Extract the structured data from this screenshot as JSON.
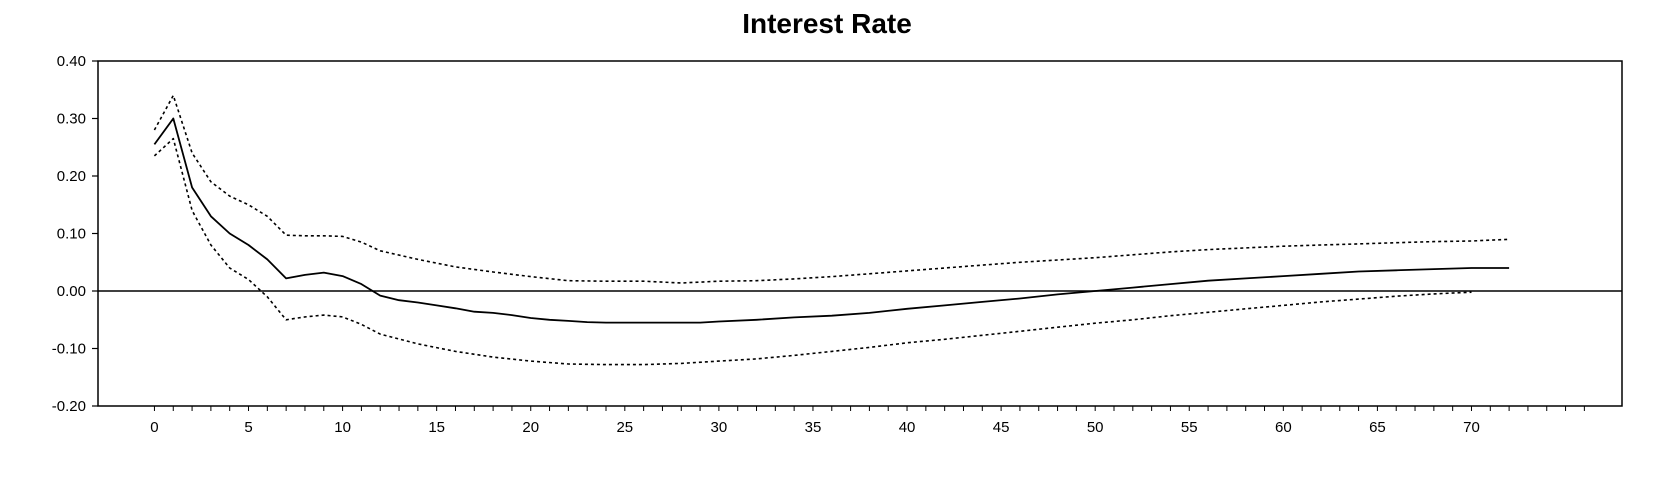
{
  "chart_data": {
    "type": "line",
    "title": "Interest Rate",
    "xlabel": "",
    "ylabel": "",
    "xlim": [
      -3,
      78
    ],
    "ylim": [
      -0.2,
      0.4
    ],
    "x_ticks": [
      0,
      5,
      10,
      15,
      20,
      25,
      30,
      35,
      40,
      45,
      50,
      55,
      60,
      65,
      70
    ],
    "y_ticks": [
      0.4,
      0.3,
      0.2,
      0.1,
      0.0,
      -0.1,
      -0.2
    ],
    "y_tick_labels": [
      "0.40",
      "0.30",
      "0.20",
      "0.10",
      "0.00",
      "-0.10",
      "-0.20"
    ],
    "zero_line": true,
    "grid": false,
    "legend": "none",
    "colors": {
      "line": "#000000",
      "band": "#000000"
    },
    "series": [
      {
        "style": "solid",
        "x": [
          0,
          1,
          2,
          3,
          4,
          5,
          6,
          7,
          8,
          9,
          10,
          11,
          12,
          13,
          14,
          15,
          16,
          17,
          18,
          19,
          20,
          21,
          22,
          23,
          24,
          25,
          26,
          27,
          28,
          29,
          30,
          32,
          34,
          36,
          38,
          40,
          42,
          44,
          46,
          48,
          50,
          52,
          54,
          56,
          58,
          60,
          62,
          64,
          66,
          68,
          70,
          72
        ],
        "y": [
          0.255,
          0.3,
          0.18,
          0.13,
          0.1,
          0.08,
          0.055,
          0.022,
          0.028,
          0.032,
          0.026,
          0.012,
          -0.008,
          -0.016,
          -0.02,
          -0.025,
          -0.03,
          -0.036,
          -0.038,
          -0.042,
          -0.047,
          -0.05,
          -0.052,
          -0.054,
          -0.055,
          -0.055,
          -0.055,
          -0.055,
          -0.055,
          -0.055,
          -0.053,
          -0.05,
          -0.046,
          -0.043,
          -0.038,
          -0.031,
          -0.025,
          -0.019,
          -0.013,
          -0.006,
          0.0,
          0.006,
          0.012,
          0.018,
          0.022,
          0.026,
          0.03,
          0.034,
          0.036,
          0.038,
          0.04,
          0.04
        ]
      },
      {
        "style": "dotted",
        "x": [
          0,
          1,
          2,
          3,
          4,
          5,
          6,
          7,
          8,
          9,
          10,
          11,
          12,
          14,
          16,
          18,
          20,
          22,
          24,
          26,
          28,
          30,
          32,
          34,
          36,
          38,
          40,
          42,
          44,
          46,
          48,
          50,
          52,
          54,
          56,
          58,
          60,
          62,
          64,
          66,
          68,
          70,
          72
        ],
        "y": [
          0.28,
          0.34,
          0.24,
          0.19,
          0.165,
          0.15,
          0.13,
          0.097,
          0.096,
          0.096,
          0.095,
          0.085,
          0.07,
          0.055,
          0.042,
          0.033,
          0.025,
          0.018,
          0.017,
          0.017,
          0.014,
          0.017,
          0.018,
          0.021,
          0.025,
          0.03,
          0.035,
          0.04,
          0.045,
          0.05,
          0.054,
          0.058,
          0.063,
          0.068,
          0.072,
          0.075,
          0.078,
          0.08,
          0.082,
          0.084,
          0.086,
          0.087,
          0.09
        ]
      },
      {
        "style": "dotted",
        "x": [
          0,
          1,
          2,
          3,
          4,
          5,
          6,
          7,
          8,
          9,
          10,
          11,
          12,
          14,
          16,
          18,
          20,
          22,
          24,
          26,
          28,
          30,
          32,
          34,
          36,
          38,
          40,
          42,
          44,
          46,
          48,
          50,
          52,
          54,
          56,
          58,
          60,
          62,
          64,
          66,
          68,
          70
        ],
        "y": [
          0.235,
          0.265,
          0.14,
          0.08,
          0.04,
          0.02,
          -0.01,
          -0.05,
          -0.045,
          -0.042,
          -0.045,
          -0.058,
          -0.075,
          -0.092,
          -0.105,
          -0.115,
          -0.122,
          -0.127,
          -0.128,
          -0.128,
          -0.126,
          -0.122,
          -0.118,
          -0.112,
          -0.105,
          -0.098,
          -0.09,
          -0.084,
          -0.077,
          -0.07,
          -0.063,
          -0.056,
          -0.05,
          -0.043,
          -0.037,
          -0.031,
          -0.025,
          -0.019,
          -0.014,
          -0.009,
          -0.005,
          -0.002
        ]
      }
    ]
  }
}
